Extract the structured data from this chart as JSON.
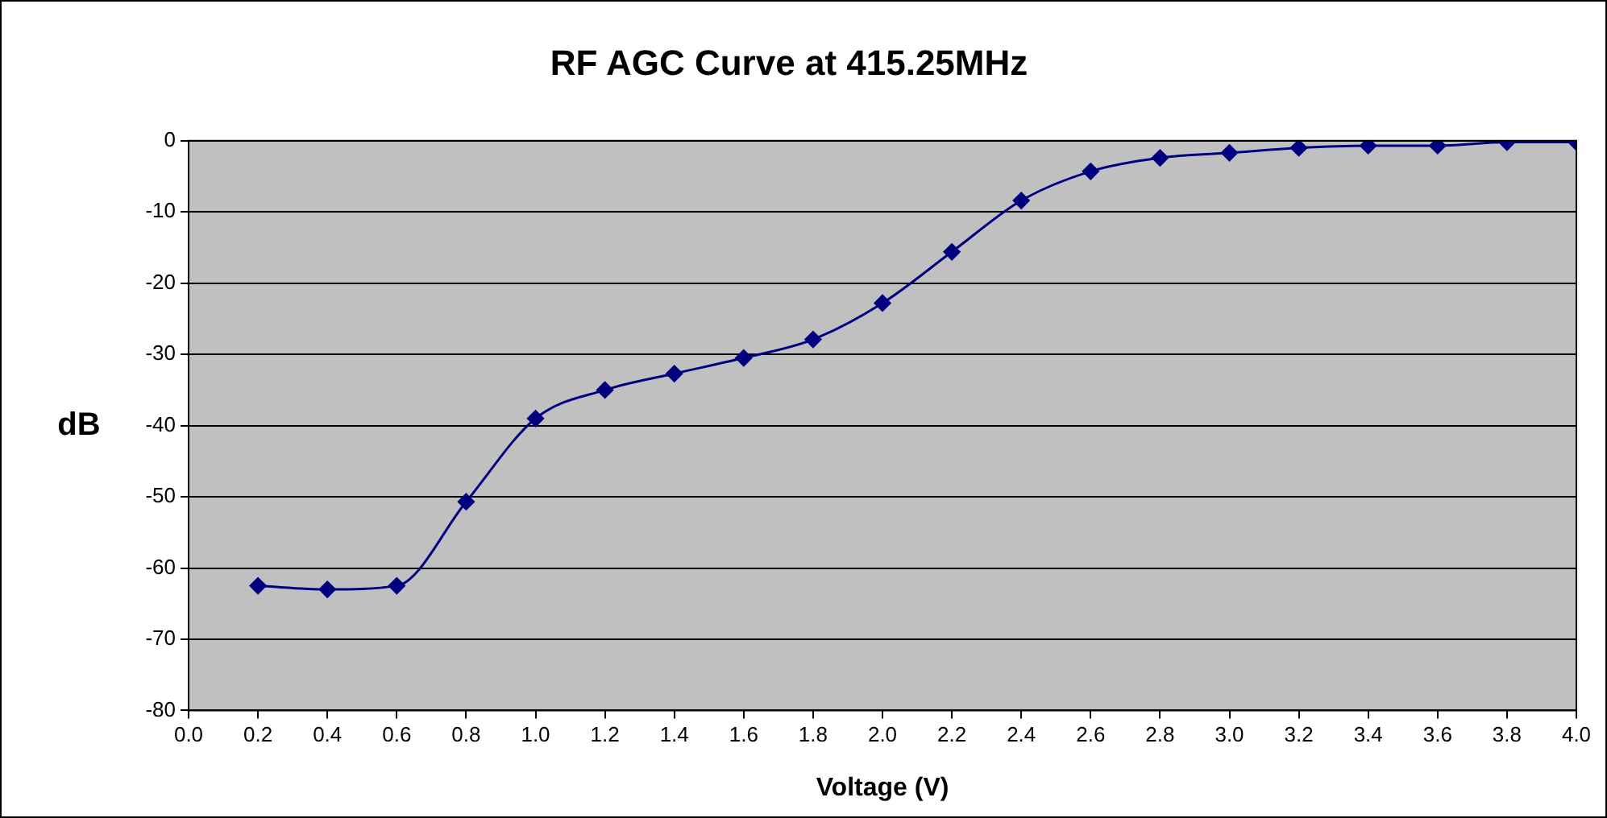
{
  "chart_data": {
    "type": "line",
    "title": "RF AGC Curve at 415.25MHz",
    "xlabel": "Voltage (V)",
    "ylabel": "dB",
    "x": [
      0.2,
      0.4,
      0.6,
      0.8,
      1.0,
      1.2,
      1.4,
      1.6,
      1.8,
      2.0,
      2.2,
      2.4,
      2.6,
      2.8,
      3.0,
      3.2,
      3.4,
      3.6,
      3.8,
      4.0
    ],
    "series": [
      {
        "color": "#000080",
        "values": [
          -62.5,
          -63,
          -62.5,
          -50.7,
          -39,
          -35,
          -32.7,
          -30.5,
          -27.9,
          -22.8,
          -15.6,
          -8.4,
          -4.3,
          -2.4,
          -1.7,
          -1,
          -0.7,
          -0.7,
          -0.2,
          -0.2
        ]
      }
    ],
    "xlim": [
      0,
      4
    ],
    "xticks": [
      {
        "value": 0,
        "label": "0.0"
      },
      0.2,
      0.4,
      0.6,
      0.8,
      {
        "value": 1,
        "label": "1.0"
      },
      1.2,
      1.4,
      1.6,
      1.8,
      {
        "value": 2,
        "label": "2.0"
      },
      2.2,
      2.4,
      2.6,
      2.8,
      {
        "value": 3,
        "label": "3.0"
      },
      3.2,
      3.4,
      3.6,
      3.8,
      {
        "value": 4,
        "label": "4.0"
      }
    ],
    "ylim": [
      -80,
      0
    ],
    "yticks": [
      -80,
      -70,
      -60,
      -50,
      -40,
      -30,
      -20,
      -10,
      0
    ],
    "grid": "y",
    "legend": false,
    "marker": "diamond",
    "line_style": "solid"
  }
}
